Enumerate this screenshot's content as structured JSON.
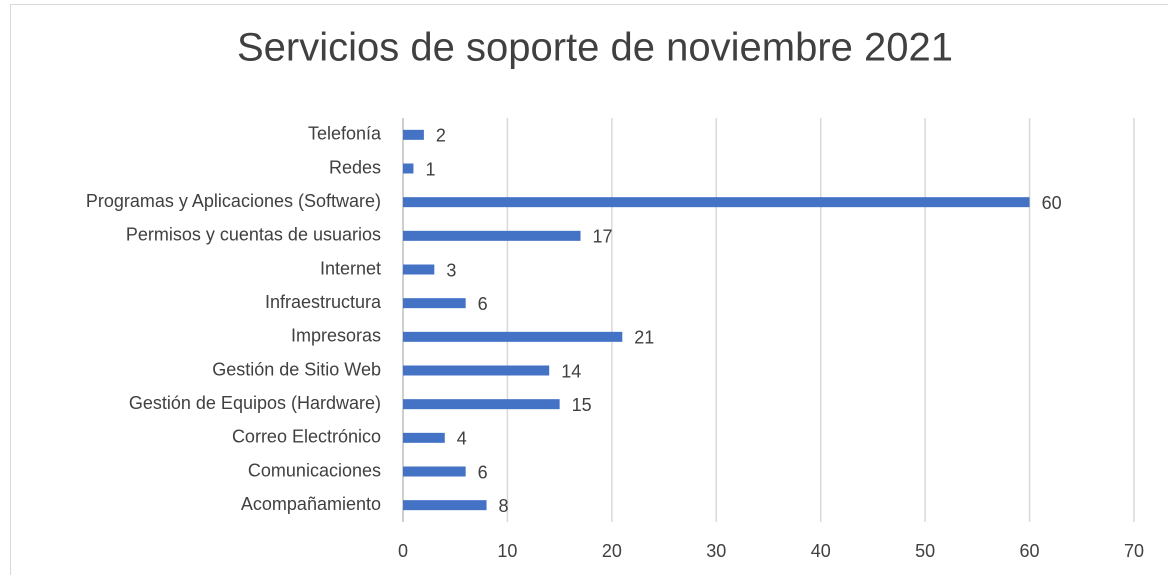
{
  "chart_data": {
    "type": "bar",
    "orientation": "horizontal",
    "title": "Servicios de soporte de noviembre 2021",
    "categories": [
      "Telefonía",
      "Redes",
      "Programas y Aplicaciones (Software)",
      "Permisos y cuentas de usuarios",
      "Internet",
      "Infraestructura",
      "Impresoras",
      "Gestión de Sitio Web",
      "Gestión de Equipos (Hardware)",
      "Correo Electrónico",
      "Comunicaciones",
      "Acompañamiento"
    ],
    "values": [
      2,
      1,
      60,
      17,
      3,
      6,
      21,
      14,
      15,
      4,
      6,
      8
    ],
    "color": "#4472c4",
    "xlim": [
      0,
      70
    ],
    "xticks": [
      0,
      10,
      20,
      30,
      40,
      50,
      60,
      70
    ],
    "grid": true
  }
}
